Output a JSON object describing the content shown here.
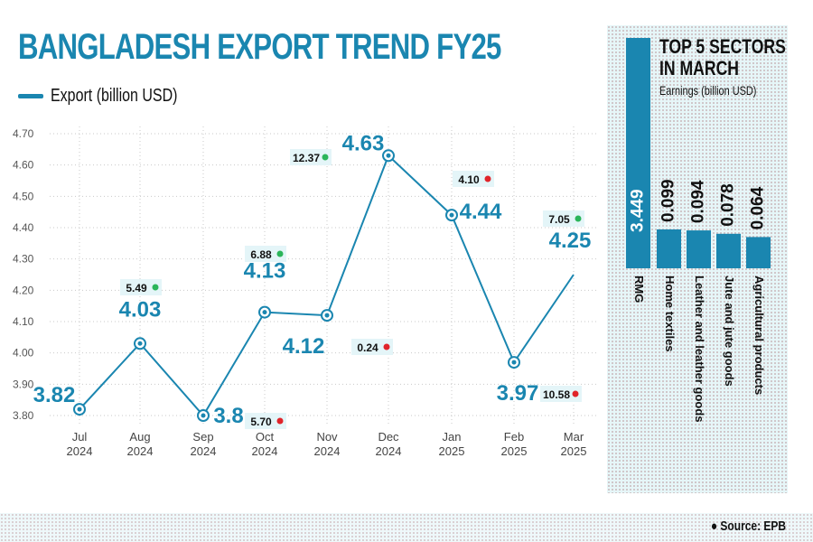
{
  "chart_data": [
    {
      "type": "line",
      "title": "BANGLADESH EXPORT TREND FY25",
      "legend": "Export (billion USD)",
      "legend_position": "top-left",
      "x": [
        "Jul 2024",
        "Aug 2024",
        "Sep 2024",
        "Oct 2024",
        "Nov 2024",
        "Dec 2024",
        "Jan 2025",
        "Feb 2025",
        "Mar 2025"
      ],
      "x_ticks": [
        [
          "Jul",
          "2024"
        ],
        [
          "Aug",
          "2024"
        ],
        [
          "Sep",
          "2024"
        ],
        [
          "Oct",
          "2024"
        ],
        [
          "Nov",
          "2024"
        ],
        [
          "Dec",
          "2024"
        ],
        [
          "Jan",
          "2025"
        ],
        [
          "Feb",
          "2025"
        ],
        [
          "Mar",
          "2025"
        ]
      ],
      "series": [
        {
          "name": "Export (billion USD)",
          "values": [
            3.82,
            4.03,
            3.8,
            4.13,
            4.12,
            4.63,
            4.44,
            3.97,
            4.25
          ]
        }
      ],
      "value_labels": [
        "3.82",
        "4.03",
        "3.8",
        "4.13",
        "4.12",
        "4.63",
        "4.44",
        "3.97",
        "4.25"
      ],
      "ylim": [
        3.8,
        4.7
      ],
      "y_ticks": [
        "3.80",
        "3.90",
        "4.00",
        "4.10",
        "4.20",
        "4.30",
        "4.40",
        "4.50",
        "4.60",
        "4.70"
      ],
      "grid": true,
      "annotations": [
        {
          "month": "Aug 2024",
          "text": "5.49",
          "direction": "up"
        },
        {
          "month": "Sep 2024",
          "text": "5.70",
          "direction": "down"
        },
        {
          "month": "Oct 2024",
          "text": "6.88",
          "direction": "up"
        },
        {
          "month": "Nov 2024",
          "text": "12.37",
          "direction": "up"
        },
        {
          "month": "Nov 2024",
          "text": "0.24",
          "direction": "down"
        },
        {
          "month": "Jan 2025",
          "text": "4.10",
          "direction": "down"
        },
        {
          "month": "Feb 2025",
          "text": "10.58",
          "direction": "down"
        },
        {
          "month": "Mar 2025",
          "text": "7.05",
          "direction": "up"
        }
      ]
    },
    {
      "type": "bar",
      "title": "TOP 5 SECTORS IN MARCH",
      "subtitle": "Earnings (billion USD)",
      "categories": [
        "RMG",
        "Home textiles",
        "Leather and leather goods",
        "Jute and jute goods",
        "Agricultural products"
      ],
      "values": [
        3.449,
        0.099,
        0.094,
        0.078,
        0.064
      ],
      "value_labels": [
        "3.449",
        "0.099",
        "0.094",
        "0.078",
        "0.064"
      ]
    }
  ],
  "side_title_lines": [
    "TOP 5 SECTORS",
    "IN MARCH"
  ],
  "source": "Source: EPB",
  "colors": {
    "line": "#1a86b0",
    "up": "#2bb55a",
    "down": "#e0242a",
    "bar": "#1a86b0"
  }
}
